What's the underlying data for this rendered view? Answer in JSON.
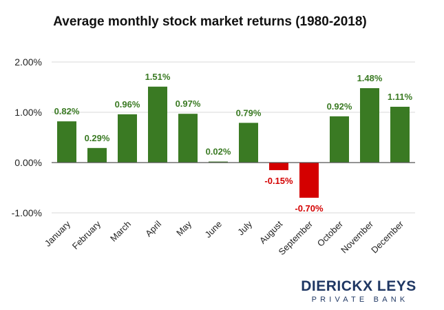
{
  "chart_data": {
    "type": "bar",
    "title": "Average monthly stock market returns (1980-2018)",
    "categories": [
      "January",
      "February",
      "March",
      "April",
      "May",
      "June",
      "July",
      "August",
      "September",
      "October",
      "November",
      "December"
    ],
    "values": [
      0.82,
      0.29,
      0.96,
      1.51,
      0.97,
      0.02,
      0.79,
      -0.15,
      -0.7,
      0.92,
      1.48,
      1.11
    ],
    "data_labels": [
      "0.82%",
      "0.29%",
      "0.96%",
      "1.51%",
      "0.97%",
      "0.02%",
      "0.79%",
      "-0.15%",
      "-0.70%",
      "0.92%",
      "1.48%",
      "1.11%"
    ],
    "ylim": [
      -1.0,
      2.0
    ],
    "yticks": [
      2.0,
      1.0,
      0.0,
      -1.0
    ],
    "ytick_labels": [
      "2.00%",
      "1.00%",
      "0.00%",
      "-1.00%"
    ],
    "grid": true,
    "legend": "none",
    "colors": {
      "positive": "#3a7a23",
      "negative": "#d40000"
    }
  },
  "brand": {
    "name": "DIERICKX LEYS",
    "tagline": "PRIVATE BANK"
  }
}
